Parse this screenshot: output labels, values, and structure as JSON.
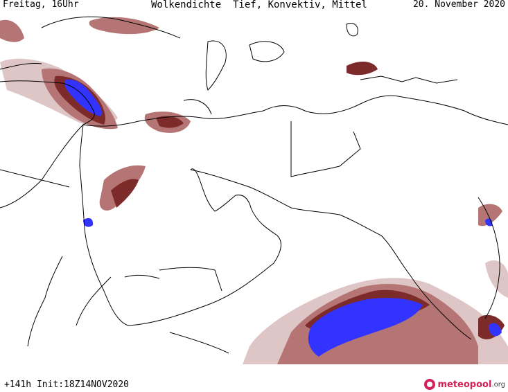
{
  "header": {
    "left": "Freitag, 16Uhr",
    "center": "Wolkendichte  Tief, Konvektiv, Mittel",
    "right": "20. November 2020"
  },
  "footer": {
    "run_info": "+141h Init:18Z14NOV2020",
    "brand": "meteopool",
    "brand_suffix": ".org"
  },
  "colors": {
    "background": "#ffffff",
    "border": "#000000",
    "cloud_light": "#d9b8b8",
    "cloud_medium": "#b07070",
    "cloud_dense": "#7d2a2a",
    "cloud_max": "#3030ff",
    "brand": "#d6205a"
  },
  "map": {
    "region": "Middle East / Arabian Peninsula / Arabian Sea",
    "layer": "cloud cover (low, convective, mid)"
  }
}
